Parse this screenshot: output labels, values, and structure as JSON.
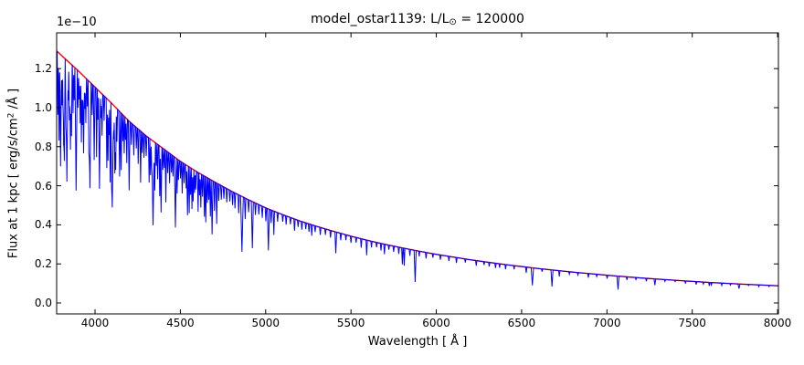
{
  "figure": {
    "title": {
      "prefix": "model_ostar1139: L/L",
      "sun_symbol": "⊙",
      "suffix": " = 120000"
    },
    "x_axis": {
      "label": "Wavelength [ Å ]",
      "tick_labels": [
        "4000",
        "4500",
        "5000",
        "5500",
        "6000",
        "6500",
        "7000",
        "7500",
        "8000"
      ]
    },
    "y_axis": {
      "offset_text": "1e−10",
      "label_prefix": "Flux at 1 kpc [ erg/s/cm",
      "label_sup": "2",
      "label_suffix": " /Å ]",
      "tick_labels": [
        "0.0",
        "0.2",
        "0.4",
        "0.6",
        "0.8",
        "1.0",
        "1.2"
      ]
    },
    "colors": {
      "spectrum": "#0000ff",
      "continuum": "#ff0000",
      "frame": "#000000",
      "background": "#ffffff",
      "text": "#000000"
    }
  },
  "chart_data": {
    "type": "line",
    "title": "model_ostar1139: L/L⊙ = 120000",
    "xlabel": "Wavelength [ Å ]",
    "ylabel": "Flux at 1 kpc [ erg/s/cm² /Å ]",
    "y_scale_factor": "1e-10",
    "grid": false,
    "legend": "none",
    "xlim": [
      3775,
      8005
    ],
    "ylim": [
      -0.056,
      1.383
    ],
    "x_ticks": [
      4000,
      4500,
      5000,
      5500,
      6000,
      6500,
      7000,
      7500,
      8000
    ],
    "y_ticks": [
      0.0,
      0.2,
      0.4,
      0.6,
      0.8,
      1.0,
      1.2
    ],
    "series": [
      {
        "name": "model spectrum",
        "role": "spectrum",
        "color": "#0000ff",
        "line_width": 1
      },
      {
        "name": "smooth continuum",
        "role": "continuum",
        "color": "#ff0000",
        "line_width": 1.4
      }
    ],
    "continuum_points": [
      [
        3770,
        1.295
      ],
      [
        3800,
        1.27
      ],
      [
        3900,
        1.19
      ],
      [
        4000,
        1.105
      ],
      [
        4100,
        1.02
      ],
      [
        4200,
        0.93
      ],
      [
        4300,
        0.855
      ],
      [
        4400,
        0.79
      ],
      [
        4500,
        0.725
      ],
      [
        4600,
        0.67
      ],
      [
        4700,
        0.62
      ],
      [
        4800,
        0.572
      ],
      [
        4900,
        0.528
      ],
      [
        5000,
        0.487
      ],
      [
        5100,
        0.452
      ],
      [
        5200,
        0.42
      ],
      [
        5300,
        0.392
      ],
      [
        5400,
        0.366
      ],
      [
        5500,
        0.342
      ],
      [
        5600,
        0.32
      ],
      [
        5700,
        0.3
      ],
      [
        5800,
        0.282
      ],
      [
        5900,
        0.265
      ],
      [
        6000,
        0.249
      ],
      [
        6200,
        0.221
      ],
      [
        6400,
        0.197
      ],
      [
        6600,
        0.176
      ],
      [
        6800,
        0.158
      ],
      [
        7000,
        0.142
      ],
      [
        7200,
        0.128
      ],
      [
        7400,
        0.116
      ],
      [
        7600,
        0.105
      ],
      [
        7800,
        0.096
      ],
      [
        8005,
        0.088
      ]
    ],
    "absorption_lines": [
      [
        3782,
        0.25,
        4
      ],
      [
        3789,
        0.35,
        4
      ],
      [
        3798,
        0.45,
        6
      ],
      [
        3806,
        0.2,
        4
      ],
      [
        3812,
        0.2,
        4
      ],
      [
        3816,
        0.3,
        4
      ],
      [
        3820,
        0.42,
        5
      ],
      [
        3829,
        0.22,
        4
      ],
      [
        3835,
        0.5,
        7
      ],
      [
        3843,
        0.16,
        4
      ],
      [
        3850,
        0.24,
        4
      ],
      [
        3856,
        0.36,
        5
      ],
      [
        3862,
        0.3,
        4
      ],
      [
        3871,
        0.2,
        4
      ],
      [
        3878,
        0.14,
        4
      ],
      [
        3889,
        0.52,
        7
      ],
      [
        3900,
        0.16,
        4
      ],
      [
        3907,
        0.12,
        4
      ],
      [
        3913,
        0.22,
        4
      ],
      [
        3920,
        0.3,
        4
      ],
      [
        3926,
        0.22,
        4
      ],
      [
        3933,
        0.34,
        5
      ],
      [
        3940,
        0.14,
        4
      ],
      [
        3946,
        0.2,
        4
      ],
      [
        3955,
        0.12,
        4
      ],
      [
        3964,
        0.28,
        5
      ],
      [
        3970,
        0.48,
        7
      ],
      [
        3983,
        0.14,
        4
      ],
      [
        3995,
        0.34,
        5
      ],
      [
        4009,
        0.32,
        4
      ],
      [
        4017,
        0.14,
        4
      ],
      [
        4026,
        0.46,
        6
      ],
      [
        4035,
        0.12,
        4
      ],
      [
        4041,
        0.2,
        4
      ],
      [
        4053,
        0.12,
        4
      ],
      [
        4069,
        0.34,
        4
      ],
      [
        4076,
        0.3,
        4
      ],
      [
        4082,
        0.17,
        4
      ],
      [
        4089,
        0.4,
        4
      ],
      [
        4097,
        0.22,
        4
      ],
      [
        4101,
        0.52,
        8
      ],
      [
        4110,
        0.17,
        4
      ],
      [
        4116,
        0.34,
        4
      ],
      [
        4121,
        0.32,
        4
      ],
      [
        4128,
        0.17,
        4
      ],
      [
        4144,
        0.34,
        5
      ],
      [
        4153,
        0.3,
        4
      ],
      [
        4163,
        0.14,
        4
      ],
      [
        4171,
        0.2,
        4
      ],
      [
        4179,
        0.12,
        4
      ],
      [
        4186,
        0.24,
        4
      ],
      [
        4200,
        0.38,
        5
      ],
      [
        4213,
        0.12,
        4
      ],
      [
        4227,
        0.17,
        4
      ],
      [
        4242,
        0.12,
        4
      ],
      [
        4253,
        0.2,
        4
      ],
      [
        4267,
        0.3,
        4
      ],
      [
        4276,
        0.12,
        4
      ],
      [
        4287,
        0.14,
        4
      ],
      [
        4300,
        0.12,
        4
      ],
      [
        4317,
        0.27,
        4
      ],
      [
        4325,
        0.22,
        4
      ],
      [
        4332,
        0.17,
        4
      ],
      [
        4340,
        0.52,
        8
      ],
      [
        4350,
        0.3,
        4
      ],
      [
        4359,
        0.14,
        4
      ],
      [
        4367,
        0.22,
        4
      ],
      [
        4379,
        0.32,
        4
      ],
      [
        4387,
        0.42,
        5
      ],
      [
        4397,
        0.14,
        4
      ],
      [
        4406,
        0.12,
        4
      ],
      [
        4415,
        0.34,
        4
      ],
      [
        4426,
        0.14,
        4
      ],
      [
        4437,
        0.2,
        4
      ],
      [
        4448,
        0.12,
        4
      ],
      [
        4457,
        0.14,
        4
      ],
      [
        4471,
        0.48,
        6
      ],
      [
        4481,
        0.24,
        4
      ],
      [
        4489,
        0.14,
        4
      ],
      [
        4501,
        0.12,
        4
      ],
      [
        4511,
        0.22,
        4
      ],
      [
        4522,
        0.14,
        4
      ],
      [
        4534,
        0.17,
        4
      ],
      [
        4542,
        0.36,
        5
      ],
      [
        4552,
        0.34,
        4
      ],
      [
        4560,
        0.2,
        4
      ],
      [
        4568,
        0.3,
        4
      ],
      [
        4575,
        0.24,
        4
      ],
      [
        4583,
        0.17,
        4
      ],
      [
        4590,
        0.14,
        4
      ],
      [
        4604,
        0.3,
        4
      ],
      [
        4613,
        0.17,
        4
      ],
      [
        4620,
        0.26,
        4
      ],
      [
        4630,
        0.17,
        4
      ],
      [
        4641,
        0.32,
        4
      ],
      [
        4649,
        0.36,
        4
      ],
      [
        4658,
        0.2,
        4
      ],
      [
        4667,
        0.17,
        4
      ],
      [
        4676,
        0.3,
        4
      ],
      [
        4686,
        0.44,
        5
      ],
      [
        4700,
        0.24,
        4
      ],
      [
        4713,
        0.34,
        4
      ],
      [
        4725,
        0.14,
        4
      ],
      [
        4740,
        0.12,
        4
      ],
      [
        4755,
        0.1,
        4
      ],
      [
        4772,
        0.12,
        4
      ],
      [
        4790,
        0.1,
        4
      ],
      [
        4806,
        0.12,
        4
      ],
      [
        4820,
        0.14,
        4
      ],
      [
        4842,
        0.17,
        4
      ],
      [
        4861,
        0.52,
        8
      ],
      [
        4880,
        0.2,
        4
      ],
      [
        4900,
        0.12,
        4
      ],
      [
        4922,
        0.46,
        6
      ],
      [
        4940,
        0.12,
        4
      ],
      [
        4960,
        0.1,
        4
      ],
      [
        4980,
        0.12,
        4
      ],
      [
        5001,
        0.14,
        4
      ],
      [
        5016,
        0.44,
        6
      ],
      [
        5032,
        0.14,
        4
      ],
      [
        5048,
        0.26,
        4
      ],
      [
        5070,
        0.1,
        4
      ],
      [
        5100,
        0.08,
        4
      ],
      [
        5120,
        0.1,
        4
      ],
      [
        5145,
        0.08,
        4
      ],
      [
        5169,
        0.14,
        4
      ],
      [
        5190,
        0.08,
        4
      ],
      [
        5212,
        0.1,
        4
      ],
      [
        5235,
        0.08,
        4
      ],
      [
        5254,
        0.1,
        4
      ],
      [
        5270,
        0.14,
        4
      ],
      [
        5290,
        0.08,
        4
      ],
      [
        5320,
        0.1,
        4
      ],
      [
        5350,
        0.08,
        4
      ],
      [
        5380,
        0.1,
        4
      ],
      [
        5411,
        0.3,
        5
      ],
      [
        5440,
        0.1,
        4
      ],
      [
        5470,
        0.08,
        4
      ],
      [
        5500,
        0.1,
        4
      ],
      [
        5530,
        0.08,
        4
      ],
      [
        5560,
        0.14,
        4
      ],
      [
        5592,
        0.24,
        4
      ],
      [
        5620,
        0.1,
        4
      ],
      [
        5650,
        0.08,
        4
      ],
      [
        5676,
        0.12,
        4
      ],
      [
        5696,
        0.17,
        4
      ],
      [
        5722,
        0.08,
        4
      ],
      [
        5750,
        0.1,
        4
      ],
      [
        5780,
        0.12,
        4
      ],
      [
        5801,
        0.3,
        4
      ],
      [
        5812,
        0.32,
        4
      ],
      [
        5845,
        0.12,
        4
      ],
      [
        5876,
        0.6,
        6
      ],
      [
        5900,
        0.1,
        4
      ],
      [
        5940,
        0.12,
        4
      ],
      [
        5980,
        0.08,
        4
      ],
      [
        6024,
        0.1,
        4
      ],
      [
        6074,
        0.1,
        4
      ],
      [
        6118,
        0.12,
        4
      ],
      [
        6170,
        0.08,
        4
      ],
      [
        6234,
        0.12,
        4
      ],
      [
        6280,
        0.08,
        4
      ],
      [
        6310,
        0.1,
        4
      ],
      [
        6347,
        0.12,
        4
      ],
      [
        6371,
        0.1,
        4
      ],
      [
        6406,
        0.12,
        4
      ],
      [
        6456,
        0.1,
        4
      ],
      [
        6527,
        0.16,
        4
      ],
      [
        6563,
        0.5,
        7
      ],
      [
        6620,
        0.08,
        4
      ],
      [
        6678,
        0.5,
        6
      ],
      [
        6721,
        0.18,
        4
      ],
      [
        6780,
        0.08,
        4
      ],
      [
        6830,
        0.08,
        4
      ],
      [
        6891,
        0.14,
        4
      ],
      [
        6940,
        0.08,
        4
      ],
      [
        7001,
        0.12,
        4
      ],
      [
        7065,
        0.5,
        6
      ],
      [
        7117,
        0.12,
        4
      ],
      [
        7170,
        0.08,
        4
      ],
      [
        7231,
        0.12,
        4
      ],
      [
        7281,
        0.26,
        5
      ],
      [
        7340,
        0.08,
        4
      ],
      [
        7400,
        0.06,
        4
      ],
      [
        7460,
        0.12,
        4
      ],
      [
        7523,
        0.14,
        4
      ],
      [
        7565,
        0.1,
        4
      ],
      [
        7600,
        0.16,
        4
      ],
      [
        7612,
        0.12,
        4
      ],
      [
        7673,
        0.12,
        4
      ],
      [
        7724,
        0.08,
        4
      ],
      [
        7774,
        0.24,
        6
      ],
      [
        7830,
        0.06,
        4
      ],
      [
        7890,
        0.1,
        4
      ],
      [
        7950,
        0.07,
        4
      ]
    ]
  }
}
